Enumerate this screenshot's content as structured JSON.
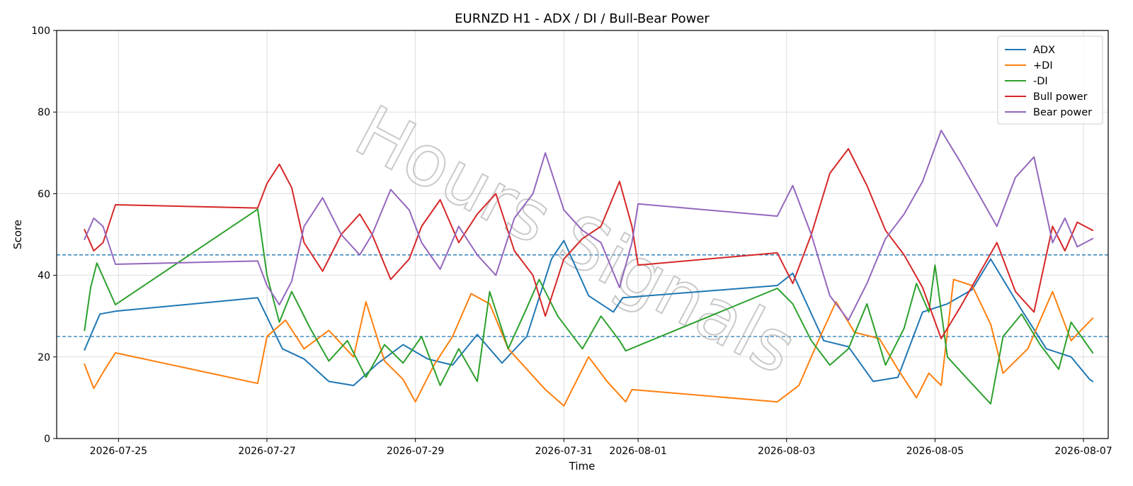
{
  "chart_data": {
    "type": "line",
    "title": "EURNZD H1 - ADX / DI / Bull-Bear Power",
    "xlabel": "Time",
    "ylabel": "Score",
    "ylim": [
      0,
      100
    ],
    "xlim": [
      "2026-07-24T04:00",
      "2026-08-07T08:00"
    ],
    "yticks": [
      0,
      20,
      40,
      60,
      80,
      100
    ],
    "xticks": [
      "2026-07-25",
      "2026-07-27",
      "2026-07-29",
      "2026-07-31",
      "2026-08-01",
      "2026-08-03",
      "2026-08-05",
      "2026-08-07"
    ],
    "grid": true,
    "legend_position": "top-right",
    "reference_lines": [
      25,
      45
    ],
    "watermark": "Hours Signals",
    "series": [
      {
        "name": "ADX",
        "color": "#1f77b4",
        "points": [
          [
            "2026-07-24T13:00",
            21.7
          ],
          [
            "2026-07-24T18:00",
            30.5
          ],
          [
            "2026-07-24T23:00",
            31.2
          ],
          [
            "2026-07-26T21:00",
            34.5
          ],
          [
            "2026-07-27T05:00",
            22.0
          ],
          [
            "2026-07-27T12:00",
            19.5
          ],
          [
            "2026-07-27T20:00",
            14.0
          ],
          [
            "2026-07-28T04:00",
            13.0
          ],
          [
            "2026-07-28T12:00",
            18.5
          ],
          [
            "2026-07-28T20:00",
            23.0
          ],
          [
            "2026-07-29T04:00",
            19.5
          ],
          [
            "2026-07-29T12:00",
            18.0
          ],
          [
            "2026-07-29T20:00",
            25.5
          ],
          [
            "2026-07-30T04:00",
            18.5
          ],
          [
            "2026-07-30T12:00",
            25.0
          ],
          [
            "2026-07-30T20:00",
            44.0
          ],
          [
            "2026-07-31T00:00",
            48.5
          ],
          [
            "2026-07-31T08:00",
            35.0
          ],
          [
            "2026-07-31T16:00",
            31.0
          ],
          [
            "2026-07-31T19:00",
            34.5
          ],
          [
            "2026-08-02T21:00",
            37.5
          ],
          [
            "2026-08-03T02:00",
            40.5
          ],
          [
            "2026-08-03T12:00",
            24.0
          ],
          [
            "2026-08-03T20:00",
            22.5
          ],
          [
            "2026-08-04T04:00",
            14.0
          ],
          [
            "2026-08-04T12:00",
            15.0
          ],
          [
            "2026-08-04T20:00",
            31.0
          ],
          [
            "2026-08-05T04:00",
            33.0
          ],
          [
            "2026-08-05T12:00",
            36.5
          ],
          [
            "2026-08-05T18:00",
            44.0
          ],
          [
            "2026-08-06T04:00",
            31.5
          ],
          [
            "2026-08-06T12:00",
            22.0
          ],
          [
            "2026-08-06T20:00",
            20.0
          ],
          [
            "2026-08-07T02:00",
            14.5
          ],
          [
            "2026-08-07T03:00",
            14.0
          ]
        ]
      },
      {
        "name": "+DI",
        "color": "#ff7f0e",
        "points": [
          [
            "2026-07-24T13:00",
            18.2
          ],
          [
            "2026-07-24T16:00",
            12.3
          ],
          [
            "2026-07-24T19:00",
            16.2
          ],
          [
            "2026-07-24T23:00",
            21.0
          ],
          [
            "2026-07-26T21:00",
            13.5
          ],
          [
            "2026-07-27T00:00",
            25.0
          ],
          [
            "2026-07-27T06:00",
            29.0
          ],
          [
            "2026-07-27T12:00",
            22.0
          ],
          [
            "2026-07-27T20:00",
            26.5
          ],
          [
            "2026-07-28T04:00",
            20.0
          ],
          [
            "2026-07-28T08:00",
            33.5
          ],
          [
            "2026-07-28T14:00",
            19.0
          ],
          [
            "2026-07-28T20:00",
            14.5
          ],
          [
            "2026-07-29T00:00",
            9.0
          ],
          [
            "2026-07-29T06:00",
            18.0
          ],
          [
            "2026-07-29T12:00",
            25.0
          ],
          [
            "2026-07-29T18:00",
            35.5
          ],
          [
            "2026-07-30T00:00",
            33.0
          ],
          [
            "2026-07-30T06:00",
            22.0
          ],
          [
            "2026-07-30T12:00",
            17.0
          ],
          [
            "2026-07-30T18:00",
            12.0
          ],
          [
            "2026-07-31T00:00",
            8.0
          ],
          [
            "2026-07-31T08:00",
            20.0
          ],
          [
            "2026-07-31T14:00",
            14.0
          ],
          [
            "2026-07-31T20:00",
            9.0
          ],
          [
            "2026-07-31T22:00",
            12.0
          ],
          [
            "2026-08-02T21:00",
            9.0
          ],
          [
            "2026-08-03T04:00",
            13.0
          ],
          [
            "2026-08-03T10:00",
            23.5
          ],
          [
            "2026-08-03T16:00",
            33.5
          ],
          [
            "2026-08-03T22:00",
            26.0
          ],
          [
            "2026-08-04T06:00",
            24.5
          ],
          [
            "2026-08-04T12:00",
            17.0
          ],
          [
            "2026-08-04T18:00",
            10.0
          ],
          [
            "2026-08-04T22:00",
            16.0
          ],
          [
            "2026-08-05T02:00",
            13.0
          ],
          [
            "2026-08-05T06:00",
            39.0
          ],
          [
            "2026-08-05T12:00",
            37.5
          ],
          [
            "2026-08-05T18:00",
            28.0
          ],
          [
            "2026-08-05T22:00",
            16.0
          ],
          [
            "2026-08-06T06:00",
            22.0
          ],
          [
            "2026-08-06T14:00",
            36.0
          ],
          [
            "2026-08-06T20:00",
            24.0
          ],
          [
            "2026-08-07T03:00",
            29.5
          ]
        ]
      },
      {
        "name": "-DI",
        "color": "#2ca02c",
        "points": [
          [
            "2026-07-24T13:00",
            26.5
          ],
          [
            "2026-07-24T15:00",
            37.0
          ],
          [
            "2026-07-24T17:00",
            43.0
          ],
          [
            "2026-07-24T23:00",
            32.8
          ],
          [
            "2026-07-26T21:00",
            56.2
          ],
          [
            "2026-07-27T00:00",
            40.0
          ],
          [
            "2026-07-27T04:00",
            28.5
          ],
          [
            "2026-07-27T08:00",
            36.0
          ],
          [
            "2026-07-27T14:00",
            27.0
          ],
          [
            "2026-07-27T20:00",
            19.0
          ],
          [
            "2026-07-28T02:00",
            24.0
          ],
          [
            "2026-07-28T08:00",
            15.0
          ],
          [
            "2026-07-28T14:00",
            23.0
          ],
          [
            "2026-07-28T20:00",
            18.5
          ],
          [
            "2026-07-29T02:00",
            25.0
          ],
          [
            "2026-07-29T08:00",
            13.0
          ],
          [
            "2026-07-29T14:00",
            22.0
          ],
          [
            "2026-07-29T20:00",
            14.0
          ],
          [
            "2026-07-30T00:00",
            36.0
          ],
          [
            "2026-07-30T06:00",
            22.0
          ],
          [
            "2026-07-30T12:00",
            32.0
          ],
          [
            "2026-07-30T16:00",
            39.0
          ],
          [
            "2026-07-30T22:00",
            30.0
          ],
          [
            "2026-07-31T02:00",
            26.0
          ],
          [
            "2026-07-31T06:00",
            22.0
          ],
          [
            "2026-07-31T12:00",
            30.0
          ],
          [
            "2026-07-31T18:00",
            24.0
          ],
          [
            "2026-07-31T20:00",
            21.5
          ],
          [
            "2026-08-02T21:00",
            36.8
          ],
          [
            "2026-08-03T02:00",
            33.0
          ],
          [
            "2026-08-03T08:00",
            24.0
          ],
          [
            "2026-08-03T14:00",
            18.0
          ],
          [
            "2026-08-03T20:00",
            22.0
          ],
          [
            "2026-08-04T02:00",
            33.0
          ],
          [
            "2026-08-04T08:00",
            18.0
          ],
          [
            "2026-08-04T14:00",
            27.0
          ],
          [
            "2026-08-04T18:00",
            38.0
          ],
          [
            "2026-08-04T22:00",
            31.0
          ],
          [
            "2026-08-05T00:00",
            42.5
          ],
          [
            "2026-08-05T04:00",
            20.0
          ],
          [
            "2026-08-05T10:00",
            15.0
          ],
          [
            "2026-08-05T18:00",
            8.5
          ],
          [
            "2026-08-05T22:00",
            25.0
          ],
          [
            "2026-08-06T04:00",
            30.5
          ],
          [
            "2026-08-06T10:00",
            23.0
          ],
          [
            "2026-08-06T16:00",
            17.0
          ],
          [
            "2026-08-06T20:00",
            28.5
          ],
          [
            "2026-08-07T03:00",
            21.0
          ]
        ]
      },
      {
        "name": "Bull power",
        "color": "#d62728",
        "points": [
          [
            "2026-07-24T13:00",
            51.2
          ],
          [
            "2026-07-24T16:00",
            46.0
          ],
          [
            "2026-07-24T19:00",
            48.0
          ],
          [
            "2026-07-24T23:00",
            57.3
          ],
          [
            "2026-07-26T21:00",
            56.5
          ],
          [
            "2026-07-27T00:00",
            62.5
          ],
          [
            "2026-07-27T04:00",
            67.2
          ],
          [
            "2026-07-27T08:00",
            61.5
          ],
          [
            "2026-07-27T12:00",
            48.0
          ],
          [
            "2026-07-27T18:00",
            41.0
          ],
          [
            "2026-07-28T00:00",
            50.0
          ],
          [
            "2026-07-28T06:00",
            55.0
          ],
          [
            "2026-07-28T10:00",
            50.0
          ],
          [
            "2026-07-28T16:00",
            39.0
          ],
          [
            "2026-07-28T22:00",
            44.0
          ],
          [
            "2026-07-29T02:00",
            52.0
          ],
          [
            "2026-07-29T08:00",
            58.5
          ],
          [
            "2026-07-29T14:00",
            48.0
          ],
          [
            "2026-07-29T20:00",
            55.0
          ],
          [
            "2026-07-30T02:00",
            60.0
          ],
          [
            "2026-07-30T08:00",
            46.0
          ],
          [
            "2026-07-30T14:00",
            40.0
          ],
          [
            "2026-07-30T18:00",
            30.0
          ],
          [
            "2026-07-31T00:00",
            44.0
          ],
          [
            "2026-07-31T06:00",
            49.0
          ],
          [
            "2026-07-31T12:00",
            52.0
          ],
          [
            "2026-07-31T18:00",
            63.0
          ],
          [
            "2026-07-31T22:00",
            52.0
          ],
          [
            "2026-08-01T00:00",
            42.5
          ],
          [
            "2026-08-02T21:00",
            45.5
          ],
          [
            "2026-08-03T02:00",
            38.0
          ],
          [
            "2026-08-03T08:00",
            50.0
          ],
          [
            "2026-08-03T14:00",
            65.0
          ],
          [
            "2026-08-03T20:00",
            71.0
          ],
          [
            "2026-08-04T02:00",
            62.0
          ],
          [
            "2026-08-04T08:00",
            51.0
          ],
          [
            "2026-08-04T14:00",
            45.0
          ],
          [
            "2026-08-04T20:00",
            37.0
          ],
          [
            "2026-08-05T02:00",
            24.5
          ],
          [
            "2026-08-05T08:00",
            32.0
          ],
          [
            "2026-08-05T14:00",
            40.0
          ],
          [
            "2026-08-05T20:00",
            48.0
          ],
          [
            "2026-08-06T02:00",
            36.0
          ],
          [
            "2026-08-06T08:00",
            31.0
          ],
          [
            "2026-08-06T14:00",
            52.0
          ],
          [
            "2026-08-06T18:00",
            46.0
          ],
          [
            "2026-08-06T22:00",
            53.0
          ],
          [
            "2026-08-07T03:00",
            51.0
          ]
        ]
      },
      {
        "name": "Bear power",
        "color": "#9467bd",
        "points": [
          [
            "2026-07-24T13:00",
            48.8
          ],
          [
            "2026-07-24T16:00",
            54.0
          ],
          [
            "2026-07-24T19:00",
            52.0
          ],
          [
            "2026-07-24T23:00",
            42.7
          ],
          [
            "2026-07-26T21:00",
            43.5
          ],
          [
            "2026-07-27T00:00",
            37.5
          ],
          [
            "2026-07-27T04:00",
            32.8
          ],
          [
            "2026-07-27T08:00",
            38.5
          ],
          [
            "2026-07-27T12:00",
            52.0
          ],
          [
            "2026-07-27T18:00",
            59.0
          ],
          [
            "2026-07-28T00:00",
            50.0
          ],
          [
            "2026-07-28T06:00",
            45.0
          ],
          [
            "2026-07-28T10:00",
            50.0
          ],
          [
            "2026-07-28T16:00",
            61.0
          ],
          [
            "2026-07-28T22:00",
            56.0
          ],
          [
            "2026-07-29T02:00",
            48.0
          ],
          [
            "2026-07-29T08:00",
            41.5
          ],
          [
            "2026-07-29T14:00",
            52.0
          ],
          [
            "2026-07-29T20:00",
            45.0
          ],
          [
            "2026-07-30T02:00",
            40.0
          ],
          [
            "2026-07-30T08:00",
            54.0
          ],
          [
            "2026-07-30T14:00",
            60.0
          ],
          [
            "2026-07-30T18:00",
            70.0
          ],
          [
            "2026-07-31T00:00",
            56.0
          ],
          [
            "2026-07-31T06:00",
            51.0
          ],
          [
            "2026-07-31T12:00",
            48.0
          ],
          [
            "2026-07-31T18:00",
            37.0
          ],
          [
            "2026-07-31T22:00",
            48.0
          ],
          [
            "2026-08-01T00:00",
            57.5
          ],
          [
            "2026-08-02T21:00",
            54.5
          ],
          [
            "2026-08-03T02:00",
            62.0
          ],
          [
            "2026-08-03T08:00",
            50.0
          ],
          [
            "2026-08-03T14:00",
            35.0
          ],
          [
            "2026-08-03T20:00",
            29.0
          ],
          [
            "2026-08-04T02:00",
            38.0
          ],
          [
            "2026-08-04T08:00",
            49.0
          ],
          [
            "2026-08-04T14:00",
            55.0
          ],
          [
            "2026-08-04T20:00",
            63.0
          ],
          [
            "2026-08-05T02:00",
            75.5
          ],
          [
            "2026-08-05T08:00",
            68.0
          ],
          [
            "2026-08-05T14:00",
            60.0
          ],
          [
            "2026-08-05T20:00",
            52.0
          ],
          [
            "2026-08-06T02:00",
            64.0
          ],
          [
            "2026-08-06T08:00",
            69.0
          ],
          [
            "2026-08-06T14:00",
            48.0
          ],
          [
            "2026-08-06T18:00",
            54.0
          ],
          [
            "2026-08-06T22:00",
            47.0
          ],
          [
            "2026-08-07T03:00",
            49.0
          ]
        ]
      }
    ]
  }
}
